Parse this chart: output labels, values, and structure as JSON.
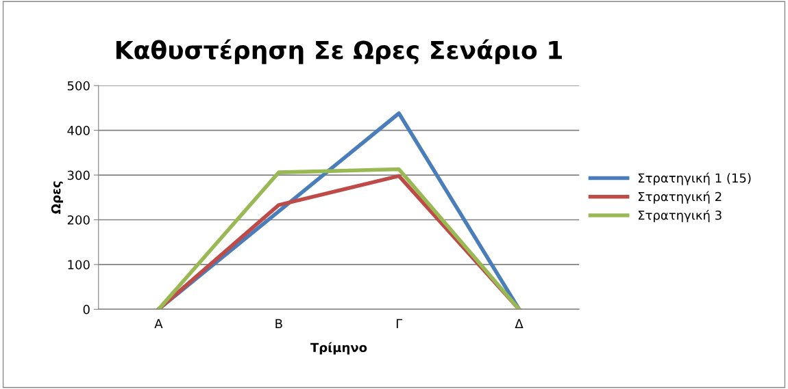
{
  "chart_data": {
    "type": "line",
    "title": "Καθυστέρηση Σε Ωρες Σενάριο 1",
    "xlabel": "Τρίμηνο",
    "ylabel": "Ωρες",
    "categories": [
      "Α",
      "Β",
      "Γ",
      "Δ"
    ],
    "series": [
      {
        "name": "Στρατηγική 1 (15)",
        "color": "#4a7ebb",
        "values": [
          0,
          219,
          438,
          0
        ]
      },
      {
        "name": "Στρατηγική 2",
        "color": "#be4b48",
        "values": [
          0,
          233,
          298,
          0
        ]
      },
      {
        "name": "Στρατηγική 3",
        "color": "#98b954",
        "values": [
          0,
          306,
          313,
          0
        ]
      }
    ],
    "ylim": [
      0,
      500
    ],
    "yticks": [
      0,
      100,
      200,
      300,
      400,
      500
    ],
    "grid": "y",
    "legend": "right",
    "marker": "none",
    "line_style": "solid"
  }
}
